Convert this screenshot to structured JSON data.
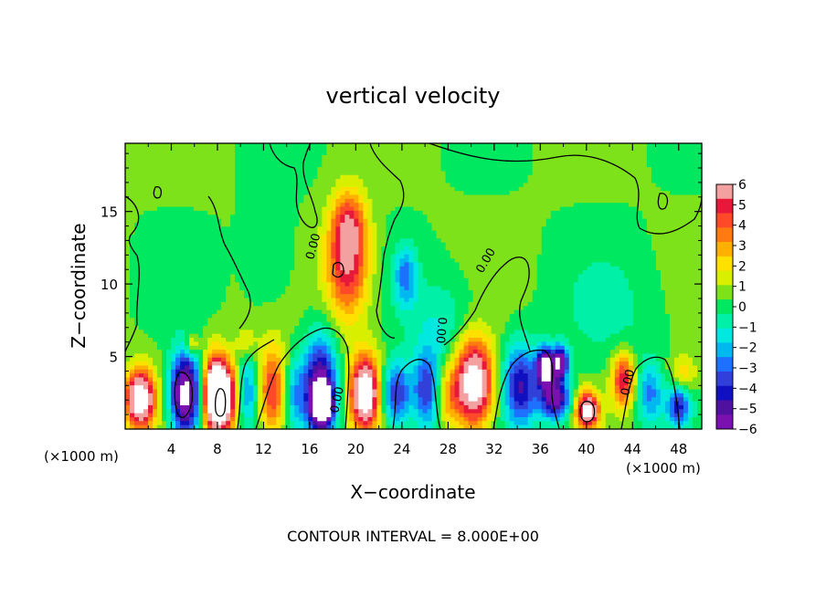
{
  "chart_data": {
    "type": "heatmap",
    "title": "vertical velocity",
    "xlabel": "X−coordinate",
    "ylabel": "Z−coordinate",
    "x_unit_left": "(×1000 m)",
    "x_unit_right": "(×1000 m)",
    "footer": "CONTOUR INTERVAL = 8.000E+00",
    "xlim": [
      0,
      50
    ],
    "ylim": [
      0,
      19.7
    ],
    "x_ticks": [
      4,
      8,
      12,
      16,
      20,
      24,
      28,
      32,
      36,
      40,
      44,
      48
    ],
    "x_tick_labels": [
      "4",
      "8",
      "12",
      "16",
      "20",
      "24",
      "28",
      "32",
      "36",
      "40",
      "44",
      "48"
    ],
    "y_ticks": [
      5,
      10,
      15
    ],
    "y_tick_labels": [
      "5",
      "10",
      "15"
    ],
    "colorbar": {
      "range": [
        -6,
        6
      ],
      "tick_labels": [
        "6",
        "5",
        "4",
        "3",
        "2",
        "1",
        "0",
        "−1",
        "−2",
        "−3",
        "−4",
        "−5",
        "−6"
      ],
      "colors": [
        "#f3a0a0",
        "#e8183a",
        "#ff4a2a",
        "#ff7a10",
        "#ffb000",
        "#ffe000",
        "#d8f000",
        "#7ee21a",
        "#00e860",
        "#00f0a8",
        "#00e8e0",
        "#00b8f0",
        "#1e70ff",
        "#3040d8",
        "#1010c0",
        "#5010a0",
        "#7a10b0"
      ]
    },
    "contour_labels": [
      "0.00",
      "0.00",
      "0.00",
      "0.00",
      "0.00"
    ],
    "background_value": 0.4,
    "features": [
      {
        "x": 19.3,
        "z": 11.3,
        "amp": 5.0,
        "sx": 1.3,
        "sz": 2.6
      },
      {
        "x": 19.4,
        "z": 14.2,
        "amp": 3.0,
        "sx": 1.0,
        "sz": 1.6
      },
      {
        "x": 24.3,
        "z": 10.5,
        "amp": -3.0,
        "sx": 0.7,
        "sz": 1.5
      },
      {
        "x": 1.3,
        "z": 2.1,
        "amp": 8.0,
        "sx": 0.9,
        "sz": 1.4
      },
      {
        "x": 5.2,
        "z": 2.4,
        "amp": -8.0,
        "sx": 0.9,
        "sz": 2.0
      },
      {
        "x": 7.6,
        "z": 2.4,
        "amp": 7.0,
        "sx": 0.6,
        "sz": 1.8
      },
      {
        "x": 8.6,
        "z": 2.3,
        "amp": 8.0,
        "sx": 0.8,
        "sz": 1.7
      },
      {
        "x": 10.6,
        "z": 2.6,
        "amp": -3.0,
        "sx": 0.7,
        "sz": 1.8
      },
      {
        "x": 12.8,
        "z": 2.6,
        "amp": 4.5,
        "sx": 0.9,
        "sz": 2.2
      },
      {
        "x": 14.6,
        "z": 2.4,
        "amp": -2.5,
        "sx": 0.7,
        "sz": 1.8
      },
      {
        "x": 16.9,
        "z": 2.8,
        "amp": -6.5,
        "sx": 1.0,
        "sz": 2.4
      },
      {
        "x": 17.1,
        "z": 1.7,
        "amp": -8.0,
        "sx": 0.6,
        "sz": 0.9
      },
      {
        "x": 20.8,
        "z": 2.5,
        "amp": 8.0,
        "sx": 0.9,
        "sz": 1.8
      },
      {
        "x": 23.5,
        "z": 2.4,
        "amp": -4.5,
        "sx": 0.9,
        "sz": 1.6
      },
      {
        "x": 26.1,
        "z": 2.6,
        "amp": -4.0,
        "sx": 0.8,
        "sz": 2.0
      },
      {
        "x": 28.0,
        "z": 2.2,
        "amp": 2.0,
        "sx": 0.7,
        "sz": 1.5
      },
      {
        "x": 30.2,
        "z": 3.2,
        "amp": 8.0,
        "sx": 1.2,
        "sz": 2.1
      },
      {
        "x": 34.3,
        "z": 3.0,
        "amp": -5.0,
        "sx": 1.1,
        "sz": 2.0
      },
      {
        "x": 36.4,
        "z": 4.3,
        "amp": -8.0,
        "sx": 0.5,
        "sz": 0.9
      },
      {
        "x": 37.7,
        "z": 4.6,
        "amp": -7.0,
        "sx": 0.5,
        "sz": 0.8
      },
      {
        "x": 37.3,
        "z": 2.1,
        "amp": -6.5,
        "sx": 0.9,
        "sz": 1.0
      },
      {
        "x": 40.1,
        "z": 1.3,
        "amp": 7.0,
        "sx": 0.7,
        "sz": 0.9
      },
      {
        "x": 43.2,
        "z": 3.4,
        "amp": 5.0,
        "sx": 0.7,
        "sz": 1.3
      },
      {
        "x": 45.5,
        "z": 2.4,
        "amp": -3.0,
        "sx": 0.8,
        "sz": 1.5
      },
      {
        "x": 48.0,
        "z": 1.6,
        "amp": -4.5,
        "sx": 0.7,
        "sz": 1.0
      },
      {
        "x": 48.4,
        "z": 3.8,
        "amp": 2.0,
        "sx": 0.8,
        "sz": 1.0
      },
      {
        "x": 5.8,
        "z": 5.8,
        "amp": 2.5,
        "sx": 0.4,
        "sz": 0.5
      },
      {
        "x": 10.5,
        "z": 6.0,
        "amp": 1.5,
        "sx": 0.6,
        "sz": 0.8
      },
      {
        "x": 12.5,
        "z": 12.0,
        "amp": -1.0,
        "sx": 1.5,
        "sz": 2.5
      },
      {
        "x": 27.5,
        "z": 7.0,
        "amp": -1.5,
        "sx": 2.0,
        "sz": 2.5
      },
      {
        "x": 42.0,
        "z": 8.0,
        "amp": -0.9,
        "sx": 3.0,
        "sz": 3.0
      }
    ]
  }
}
